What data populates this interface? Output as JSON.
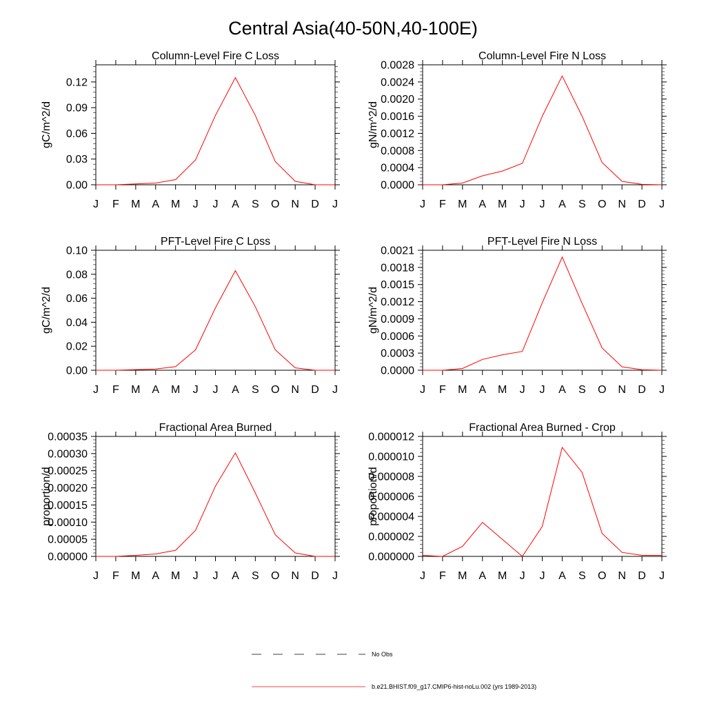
{
  "figure_title": "Central Asia(40-50N,40-100E)",
  "legend": {
    "items": [
      {
        "label": "No Obs",
        "style": "dashed",
        "color": "#000000"
      },
      {
        "label": "b.e21.BHIST.f09_g17.CMIP6-hist-noLu.002 (yrs 1989-2013)",
        "style": "solid",
        "color": "#ff0000"
      }
    ]
  },
  "chart_data": [
    {
      "type": "line",
      "title": "Column-Level Fire C Loss",
      "ylabel": "gC/m^2/d",
      "categories": [
        "J",
        "F",
        "M",
        "A",
        "M",
        "J",
        "J",
        "A",
        "S",
        "O",
        "N",
        "D",
        "J"
      ],
      "yticks": [
        "0.00",
        "0.03",
        "0.06",
        "0.09",
        "0.12"
      ],
      "ylim": [
        0,
        0.14
      ],
      "series": [
        {
          "color": "#ff0000",
          "values": [
            0.0,
            0.0,
            0.001,
            0.002,
            0.006,
            0.029,
            0.081,
            0.125,
            0.081,
            0.027,
            0.004,
            0.0,
            0.0
          ]
        }
      ]
    },
    {
      "type": "line",
      "title": "Column-Level Fire N Loss",
      "ylabel": "gN/m^2/d",
      "categories": [
        "J",
        "F",
        "M",
        "A",
        "M",
        "J",
        "J",
        "A",
        "S",
        "O",
        "N",
        "D",
        "J"
      ],
      "yticks": [
        "0.0000",
        "0.0004",
        "0.0008",
        "0.0012",
        "0.0016",
        "0.0020",
        "0.0024",
        "0.0028"
      ],
      "ylim": [
        0,
        0.0028
      ],
      "series": [
        {
          "color": "#ff0000",
          "values": [
            0.0,
            0.0,
            4e-05,
            0.00021,
            0.00032,
            0.0005,
            0.0016,
            0.00254,
            0.0016,
            0.00052,
            8e-05,
            1e-05,
            0.0
          ]
        }
      ]
    },
    {
      "type": "line",
      "title": "PFT-Level Fire C Loss",
      "ylabel": "gC/m^2/d",
      "categories": [
        "J",
        "F",
        "M",
        "A",
        "M",
        "J",
        "J",
        "A",
        "S",
        "O",
        "N",
        "D",
        "J"
      ],
      "yticks": [
        "0.00",
        "0.02",
        "0.04",
        "0.06",
        "0.08",
        "0.10"
      ],
      "ylim": [
        0,
        0.1
      ],
      "series": [
        {
          "color": "#ff0000",
          "values": [
            0.0,
            0.0,
            0.0005,
            0.001,
            0.003,
            0.017,
            0.052,
            0.083,
            0.053,
            0.017,
            0.002,
            0.0,
            0.0
          ]
        }
      ]
    },
    {
      "type": "line",
      "title": "PFT-Level Fire N Loss",
      "ylabel": "gN/m^2/d",
      "categories": [
        "J",
        "F",
        "M",
        "A",
        "M",
        "J",
        "J",
        "A",
        "S",
        "O",
        "N",
        "D",
        "J"
      ],
      "yticks": [
        "0.0000",
        "0.0003",
        "0.0006",
        "0.0009",
        "0.0012",
        "0.0015",
        "0.0018",
        "0.0021"
      ],
      "ylim": [
        0,
        0.0021
      ],
      "series": [
        {
          "color": "#ff0000",
          "values": [
            0.0,
            0.0,
            3e-05,
            0.00019,
            0.00027,
            0.00033,
            0.00118,
            0.00198,
            0.00117,
            0.00039,
            6e-05,
            1e-05,
            0.0
          ]
        }
      ]
    },
    {
      "type": "line",
      "title": "Fractional Area Burned",
      "ylabel": "proportion/d",
      "categories": [
        "J",
        "F",
        "M",
        "A",
        "M",
        "J",
        "J",
        "A",
        "S",
        "O",
        "N",
        "D",
        "J"
      ],
      "yticks": [
        "0.00000",
        "0.00005",
        "0.00010",
        "0.00015",
        "0.00020",
        "0.00025",
        "0.00030",
        "0.00035"
      ],
      "ylim": [
        0,
        0.00035
      ],
      "series": [
        {
          "color": "#ff0000",
          "values": [
            0.0,
            0.0,
            3e-06,
            7e-06,
            1.8e-05,
            7.6e-05,
            0.000205,
            0.000302,
            0.000185,
            6.3e-05,
            1e-05,
            0.0,
            0.0
          ]
        }
      ]
    },
    {
      "type": "line",
      "title": "Fractional Area Burned - Crop",
      "ylabel": "proportion/d",
      "categories": [
        "J",
        "F",
        "M",
        "A",
        "M",
        "J",
        "J",
        "A",
        "S",
        "O",
        "N",
        "D",
        "J"
      ],
      "yticks": [
        "0.000000",
        "0.000002",
        "0.000004",
        "0.000006",
        "0.000008",
        "0.000010",
        "0.000012"
      ],
      "ylim": [
        0,
        1.2e-05
      ],
      "series": [
        {
          "color": "#ff0000",
          "values": [
            1e-07,
            0.0,
            1e-06,
            3.4e-06,
            1.7e-06,
            0.0,
            3e-06,
            1.09e-05,
            8.4e-06,
            2.3e-06,
            4e-07,
            1e-07,
            1e-07
          ]
        }
      ]
    }
  ]
}
